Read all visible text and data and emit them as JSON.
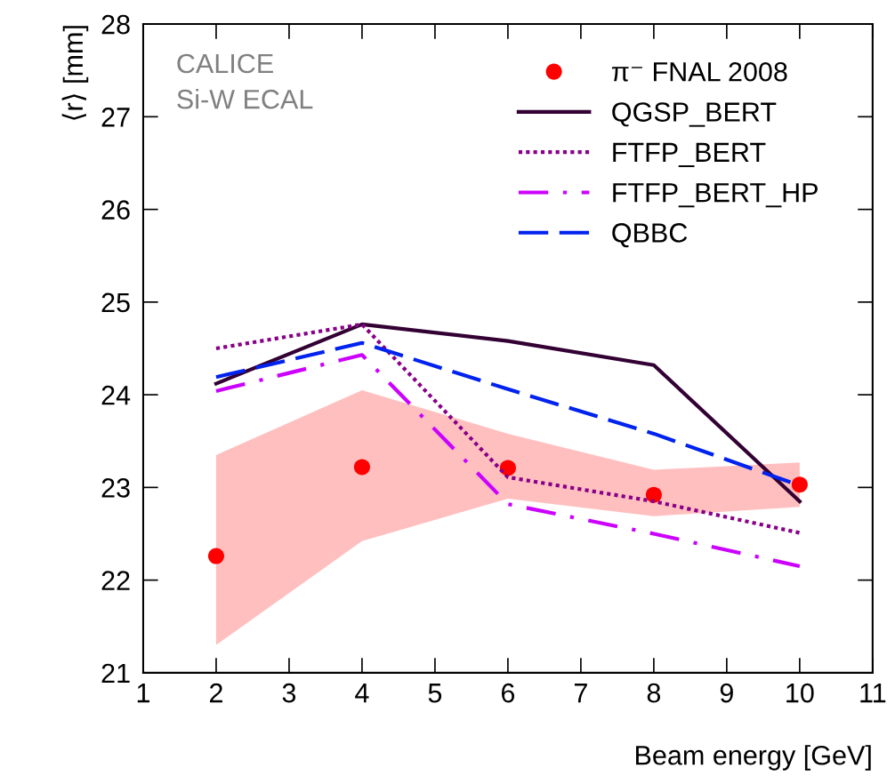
{
  "chart_data": {
    "type": "line",
    "xlabel": "Beam energy [GeV]",
    "ylabel": "⟨r⟩ [mm]",
    "annotations": [
      "CALICE",
      "Si-W ECAL"
    ],
    "x": [
      2,
      4,
      6,
      8,
      10
    ],
    "series": [
      {
        "name": "π⁻ FNAL 2008",
        "type": "scatter",
        "marker": "circle",
        "color": "#ff0000",
        "values": [
          22.26,
          23.22,
          23.21,
          22.92,
          23.03
        ],
        "lower": [
          21.3,
          22.42,
          22.88,
          22.69,
          22.79
        ],
        "upper": [
          23.35,
          24.05,
          23.58,
          23.19,
          23.27
        ]
      },
      {
        "name": "QGSP_BERT",
        "line_style": "solid",
        "color": "#330033",
        "values": [
          24.12,
          24.76,
          24.58,
          24.32,
          22.85
        ]
      },
      {
        "name": "FTFP_BERT",
        "line_style": "dotted",
        "color": "#880088",
        "values": [
          24.5,
          24.76,
          23.11,
          22.85,
          22.51
        ]
      },
      {
        "name": "FTFP_BERT_HP",
        "line_style": "dashdot",
        "color": "#cc00ff",
        "values": [
          24.04,
          24.43,
          22.82,
          22.5,
          22.15
        ]
      },
      {
        "name": "QBBC",
        "line_style": "dashed",
        "color": "#0022ee",
        "values": [
          24.19,
          24.56,
          24.06,
          23.58,
          23.02
        ]
      }
    ],
    "xlim": [
      1,
      11
    ],
    "xticks": [
      1,
      2,
      3,
      4,
      5,
      6,
      7,
      8,
      9,
      10,
      11
    ],
    "ylim": [
      21,
      28
    ],
    "yticks": [
      21,
      22,
      23,
      24,
      25,
      26,
      27,
      28
    ],
    "grid": false,
    "legend": "top right"
  }
}
